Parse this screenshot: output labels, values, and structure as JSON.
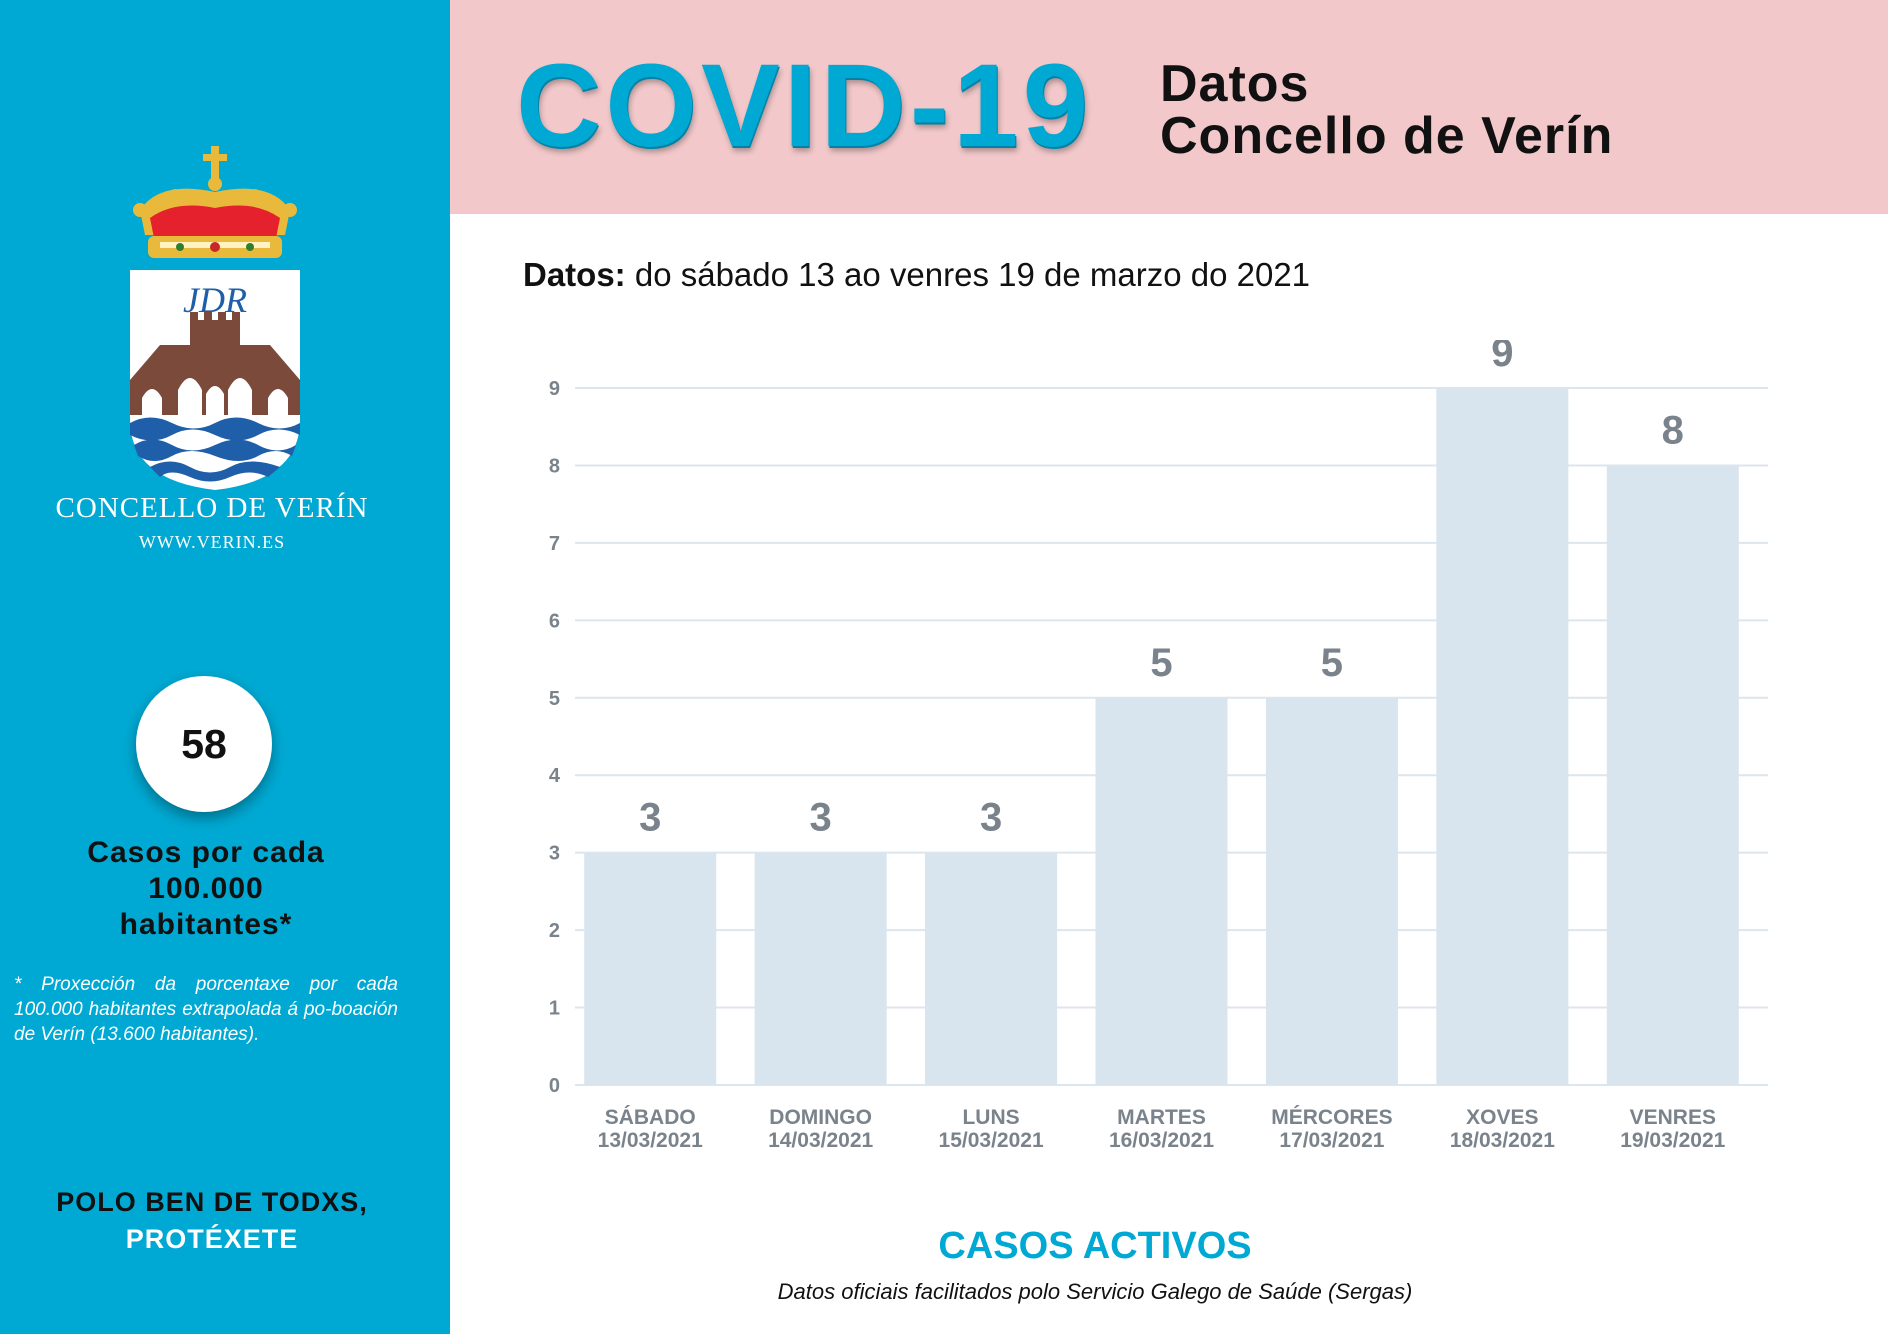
{
  "colors": {
    "sidebar": "#00a9d3",
    "header": "#f2c8ca",
    "bar": "#d8e5ee",
    "label": "#7a838b",
    "accent": "#00a9d3"
  },
  "sidebar": {
    "crest_icon": "verin-coat-of-arms",
    "crest_monogram": "JDR",
    "council_name": "CONCELLO DE VERÍN",
    "council_web": "WWW.VERIN.ES",
    "rate_value": "58",
    "rate_label_lines": [
      "Casos por cada",
      "100.000",
      "habitantes*"
    ],
    "rate_note": "* Proxección da porcentaxe por cada 100.000 habitantes extrapolada á po-boación de Verín (13.600 habitantes).",
    "slogan_line1": "POLO BEN DE TODXS,",
    "slogan_line2": "PROTÉXETE"
  },
  "header": {
    "title": "COVID-19",
    "subtitle_line1": "Datos",
    "subtitle_line2": "Concello de Verín"
  },
  "period": {
    "label": "Datos:",
    "text": " do sábado 13  ao venres 19 de marzo do 2021"
  },
  "chart_data": {
    "type": "bar",
    "title": "CASOS ACTIVOS",
    "categories": [
      [
        "SÁBADO",
        "13/03/2021"
      ],
      [
        "DOMINGO",
        "14/03/2021"
      ],
      [
        "LUNS",
        "15/03/2021"
      ],
      [
        "MARTES",
        "16/03/2021"
      ],
      [
        "MÉRCORES",
        "17/03/2021"
      ],
      [
        "XOVES",
        "18/03/2021"
      ],
      [
        "VENRES",
        "19/03/2021"
      ]
    ],
    "values": [
      3,
      3,
      3,
      5,
      5,
      9,
      8
    ],
    "ylim": [
      0,
      9
    ],
    "yticks": [
      0,
      1,
      2,
      3,
      4,
      5,
      6,
      7,
      8,
      9
    ],
    "grid": true,
    "data_labels": true
  },
  "footer": {
    "source": "Datos oficiais facilitados polo Servicio Galego de Saúde (Sergas)"
  }
}
